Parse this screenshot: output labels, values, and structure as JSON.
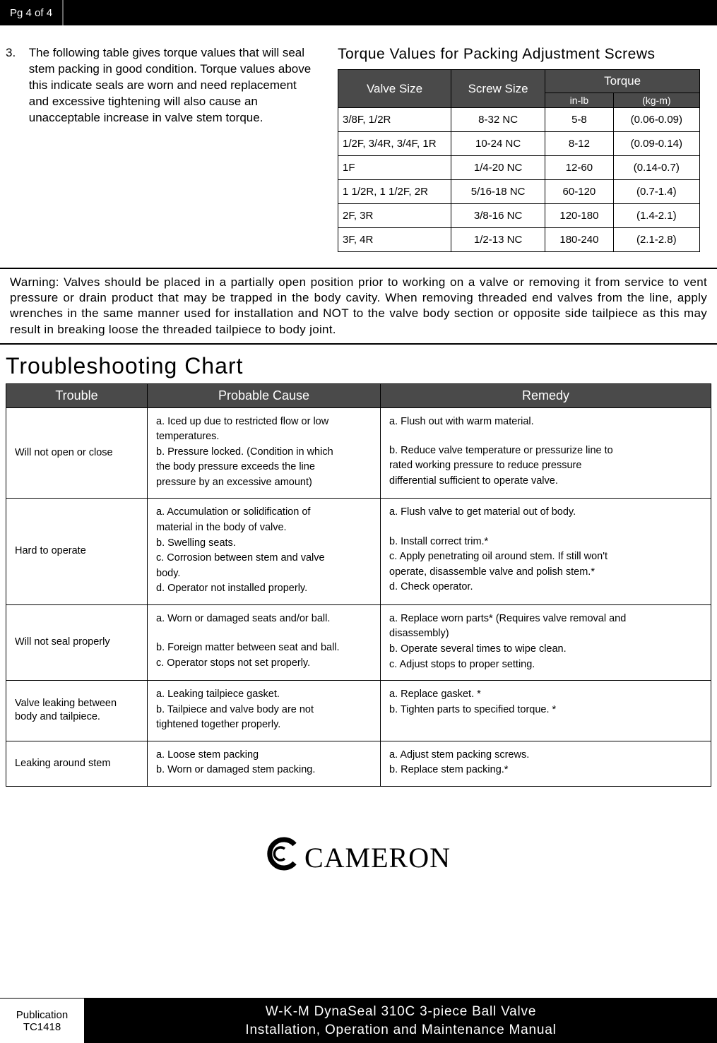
{
  "header": {
    "page_label": "Pg 4 of 4"
  },
  "intro": {
    "num": "3.",
    "text": "The following table gives torque values that will seal stem packing in good condition. Torque values above this indicate seals are worn and need replacement and excessive tightening will also cause an unacceptable increase in valve stem torque."
  },
  "torque": {
    "title": "Torque Values for Packing Adjustment Screws",
    "headers": {
      "valve": "Valve Size",
      "screw": "Screw Size",
      "torque": "Torque",
      "inlb": "in-lb",
      "kgm": "(kg-m)"
    },
    "rows": [
      {
        "valve": "3/8F, 1/2R",
        "screw": "8-32 NC",
        "inlb": "5-8",
        "kgm": "(0.06-0.09)"
      },
      {
        "valve": "1/2F, 3/4R, 3/4F, 1R",
        "screw": "10-24 NC",
        "inlb": "8-12",
        "kgm": "(0.09-0.14)"
      },
      {
        "valve": "1F",
        "screw": "1/4-20 NC",
        "inlb": "12-60",
        "kgm": "(0.14-0.7)"
      },
      {
        "valve": "1 1/2R, 1 1/2F, 2R",
        "screw": "5/16-18 NC",
        "inlb": "60-120",
        "kgm": "(0.7-1.4)"
      },
      {
        "valve": "2F, 3R",
        "screw": "3/8-16 NC",
        "inlb": "120-180",
        "kgm": "(1.4-2.1)"
      },
      {
        "valve": "3F, 4R",
        "screw": "1/2-13 NC",
        "inlb": "180-240",
        "kgm": "(2.1-2.8)"
      }
    ]
  },
  "warning": "Warning:   Valves should be placed in a partially open position prior to working on a valve or removing it from service to vent pressure or drain product that may be trapped in the body cavity.  When removing threaded end valves from the line, apply wrenches in the same manner used for installation and NOT to the valve body section or opposite side tailpiece as this may result in breaking loose the threaded tailpiece to body joint.",
  "ts": {
    "title": "Troubleshooting  Chart",
    "headers": {
      "trouble": "Trouble",
      "cause": "Probable Cause",
      "remedy": "Remedy"
    },
    "rows": [
      {
        "trouble": "Will not open or close",
        "cause": [
          "a. Iced up due to restricted flow or low",
          "    temperatures.",
          "b. Pressure locked. (Condition in which",
          "    the body pressure exceeds the line",
          "    pressure by an excessive amount)"
        ],
        "remedy": [
          "a. Flush out with warm material.",
          "",
          "b. Reduce valve temperature or pressurize line to",
          "    rated working pressure to reduce pressure",
          "    differential sufficient to operate valve."
        ]
      },
      {
        "trouble": "Hard to operate",
        "cause": [
          "a. Accumulation or solidification of",
          "    material in the body of valve.",
          "b. Swelling seats.",
          "c.  Corrosion between stem and valve",
          "     body.",
          "d. Operator not installed properly."
        ],
        "remedy": [
          "a. Flush valve to get material out of body.",
          "",
          "b. Install correct trim.*",
          "c.  Apply penetrating oil around stem. If still won't",
          "    operate, disassemble valve and polish stem.*",
          "d. Check operator."
        ]
      },
      {
        "trouble": "Will not seal properly",
        "cause": [
          "a. Worn or damaged seats and/or ball.",
          "",
          "b. Foreign matter between seat and ball.",
          "c. Operator stops not set properly."
        ],
        "remedy": [
          "a. Replace worn parts* (Requires valve removal and",
          "    disassembly)",
          "b. Operate several times to wipe clean.",
          "c.  Adjust stops to proper setting."
        ]
      },
      {
        "trouble": "Valve leaking between body and tailpiece.",
        "cause": [
          "a. Leaking tailpiece gasket.",
          "b. Tailpiece and valve body are not",
          "    tightened together properly."
        ],
        "remedy": [
          "a. Replace gasket. *",
          "b. Tighten parts to specified torque. *"
        ]
      },
      {
        "trouble": "Leaking around stem",
        "cause": [
          "a.  Loose stem packing",
          "b. Worn or damaged stem packing."
        ],
        "remedy": [
          "a. Adjust stem packing screws.",
          "b. Replace stem packing.*"
        ]
      }
    ]
  },
  "logo": {
    "text": "CAMERON"
  },
  "footer": {
    "pub_label": "Publication",
    "pub_code": "TC1418",
    "title1": "W-K-M DynaSeal 310C 3-piece Ball Valve",
    "title2": "Installation, Operation and Maintenance Manual"
  }
}
